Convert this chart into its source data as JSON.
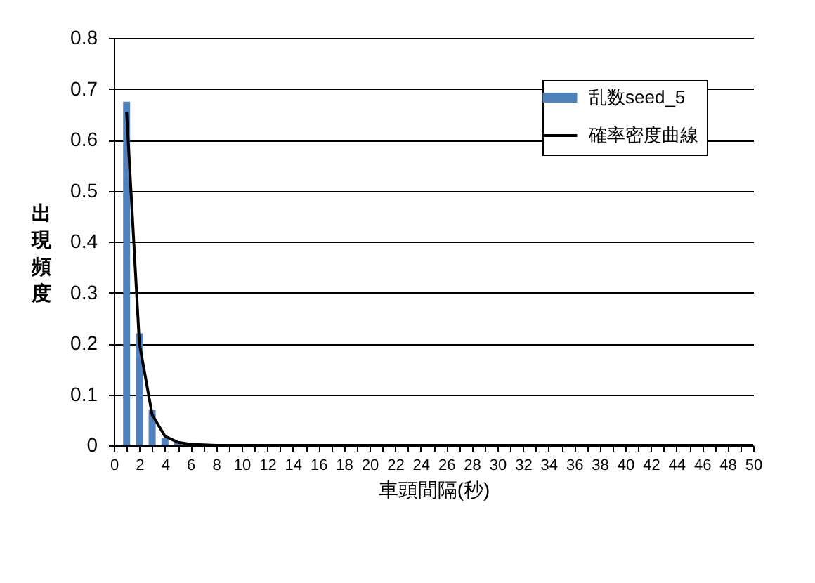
{
  "chart_data": {
    "type": "bar",
    "xlabel": "車頭間隔(秒)",
    "ylabel": "出現頻度",
    "xlim": [
      0,
      50
    ],
    "xticks": [
      0,
      {
        "value": 1,
        "label": null
      },
      2,
      {
        "value": 3,
        "label": null
      },
      4,
      {
        "value": 5,
        "label": null
      },
      6,
      {
        "value": 7,
        "label": null
      },
      8,
      {
        "value": 9,
        "label": null
      },
      10,
      {
        "value": 11,
        "label": null
      },
      12,
      {
        "value": 13,
        "label": null
      },
      14,
      {
        "value": 15,
        "label": null
      },
      16,
      {
        "value": 17,
        "label": null
      },
      18,
      {
        "value": 19,
        "label": null
      },
      20,
      {
        "value": 21,
        "label": null
      },
      22,
      {
        "value": 23,
        "label": null
      },
      24,
      {
        "value": 25,
        "label": null
      },
      26,
      {
        "value": 27,
        "label": null
      },
      28,
      {
        "value": 29,
        "label": null
      },
      30,
      {
        "value": 31,
        "label": null
      },
      32,
      {
        "value": 33,
        "label": null
      },
      34,
      {
        "value": 35,
        "label": null
      },
      36,
      {
        "value": 37,
        "label": null
      },
      38,
      {
        "value": 39,
        "label": null
      },
      40,
      {
        "value": 41,
        "label": null
      },
      42,
      {
        "value": 43,
        "label": null
      },
      44,
      {
        "value": 45,
        "label": null
      },
      46,
      {
        "value": 47,
        "label": null
      },
      48,
      {
        "value": 49,
        "label": null
      },
      50
    ],
    "ylim": [
      0,
      0.8
    ],
    "yticks": [
      0,
      0.1,
      0.2,
      0.3,
      0.4,
      0.5,
      0.6,
      0.7,
      0.8
    ],
    "grid": "y",
    "legend": "top right",
    "series": [
      {
        "name": "乱数seed_5",
        "color": "#4f81bd",
        "x": [
          1,
          2,
          3,
          4,
          5
        ],
        "values": [
          0.675,
          0.22,
          0.07,
          0.015,
          0.005
        ]
      },
      {
        "name": "確率密度曲線",
        "type": "line",
        "color": "#000000",
        "x": [
          1,
          2,
          3,
          4,
          5,
          6,
          7,
          8,
          10,
          50
        ],
        "values": [
          0.655,
          0.2,
          0.06,
          0.018,
          0.006,
          0.002,
          0.001,
          0,
          0,
          0
        ]
      }
    ]
  }
}
